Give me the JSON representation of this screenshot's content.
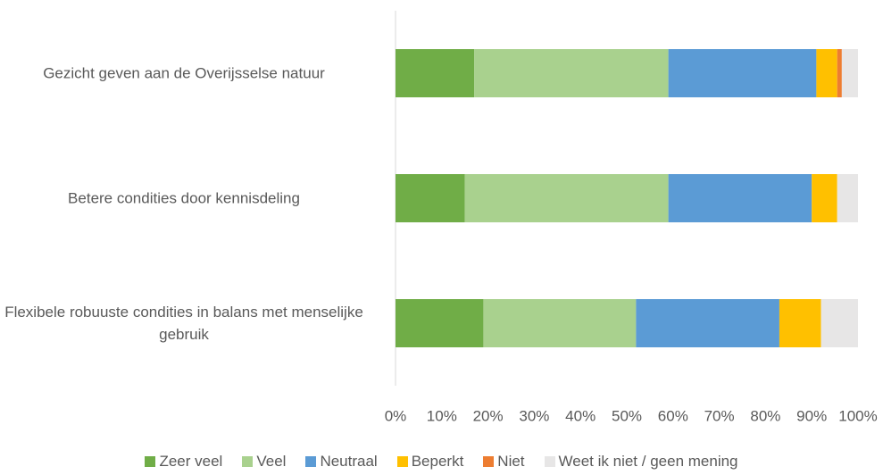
{
  "chart_data": {
    "type": "stacked_barh",
    "categories": [
      "Gezicht geven aan de Overijsselse natuur",
      "Betere condities door kennisdeling",
      "Flexibele robuuste condities in balans met menselijke gebruik"
    ],
    "series": [
      {
        "name": "Zeer veel",
        "color": "#70ad47",
        "values": [
          17,
          15,
          19
        ]
      },
      {
        "name": "Veel",
        "color": "#a9d18e",
        "values": [
          42,
          44,
          33
        ]
      },
      {
        "name": "Neutraal",
        "color": "#5b9bd5",
        "values": [
          32,
          31,
          31
        ]
      },
      {
        "name": "Beperkt",
        "color": "#ffc000",
        "values": [
          4.5,
          5.5,
          9
        ]
      },
      {
        "name": "Niet",
        "color": "#ed7d31",
        "values": [
          1,
          0,
          0
        ]
      },
      {
        "name": "Weet ik niet / geen mening",
        "color": "#e7e6e6",
        "values": [
          3.5,
          4.5,
          8
        ]
      }
    ],
    "xlim": [
      0,
      100
    ],
    "xticks": [
      {
        "value": 0,
        "label": "0%"
      },
      {
        "value": 10,
        "label": "10%"
      },
      {
        "value": 20,
        "label": "20%"
      },
      {
        "value": 30,
        "label": "30%"
      },
      {
        "value": 40,
        "label": "40%"
      },
      {
        "value": 50,
        "label": "50%"
      },
      {
        "value": 60,
        "label": "60%"
      },
      {
        "value": 70,
        "label": "70%"
      },
      {
        "value": 80,
        "label": "80%"
      },
      {
        "value": 90,
        "label": "90%"
      },
      {
        "value": 100,
        "label": "100%"
      }
    ],
    "legend": "bottom"
  }
}
